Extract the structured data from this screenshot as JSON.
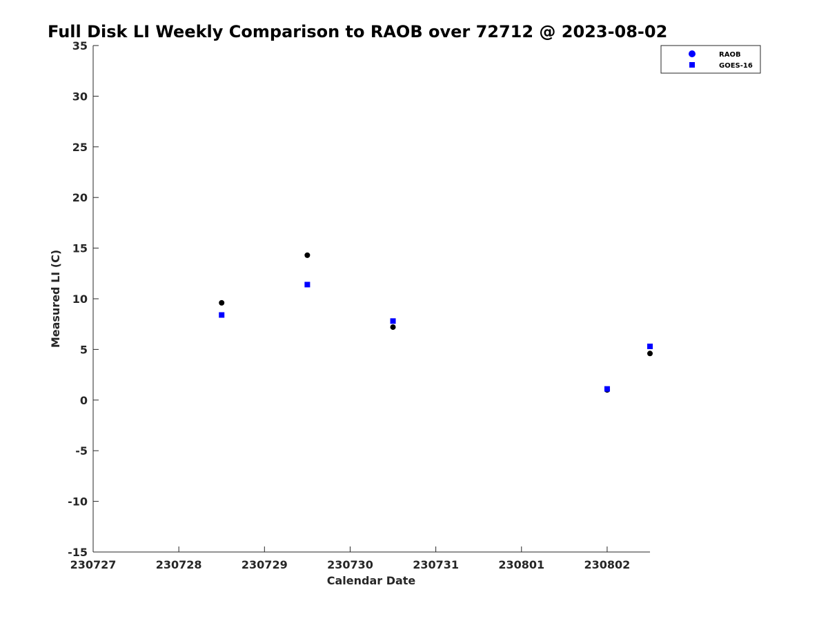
{
  "chart_data": {
    "type": "scatter",
    "title": "Full Disk LI Weekly Comparison to RAOB over 72712 @ 2023-08-02",
    "xlabel": "Calendar Date",
    "ylabel": "Measured LI (C)",
    "x_ticks": [
      "230727",
      "230728",
      "230729",
      "230730",
      "230731",
      "230801",
      "230802"
    ],
    "y_ticks": [
      35,
      30,
      25,
      20,
      15,
      10,
      5,
      0,
      -5,
      -10,
      -15
    ],
    "ylim": [
      -15,
      35
    ],
    "xlim": [
      "2023-07-27 00:00",
      "2023-08-02 12:00"
    ],
    "grid": false,
    "legend_position": "top-right",
    "series": [
      {
        "name": "RAOB",
        "marker": "circle",
        "legend_color": "#0000ff",
        "point_color": "#000000",
        "points": [
          {
            "x": "2023-07-28 12:00",
            "y": 9.6
          },
          {
            "x": "2023-07-29 12:00",
            "y": 14.3
          },
          {
            "x": "2023-07-30 12:00",
            "y": 7.2
          },
          {
            "x": "2023-08-02 00:00",
            "y": 1.0
          },
          {
            "x": "2023-08-02 12:00",
            "y": 4.6
          }
        ]
      },
      {
        "name": "GOES-16",
        "marker": "square",
        "legend_color": "#0000ff",
        "point_color": "#0000ff",
        "points": [
          {
            "x": "2023-07-28 12:00",
            "y": 8.4
          },
          {
            "x": "2023-07-29 12:00",
            "y": 11.4
          },
          {
            "x": "2023-07-30 12:00",
            "y": 7.8
          },
          {
            "x": "2023-08-02 00:00",
            "y": 1.1
          },
          {
            "x": "2023-08-02 12:00",
            "y": 5.3
          }
        ]
      }
    ]
  }
}
